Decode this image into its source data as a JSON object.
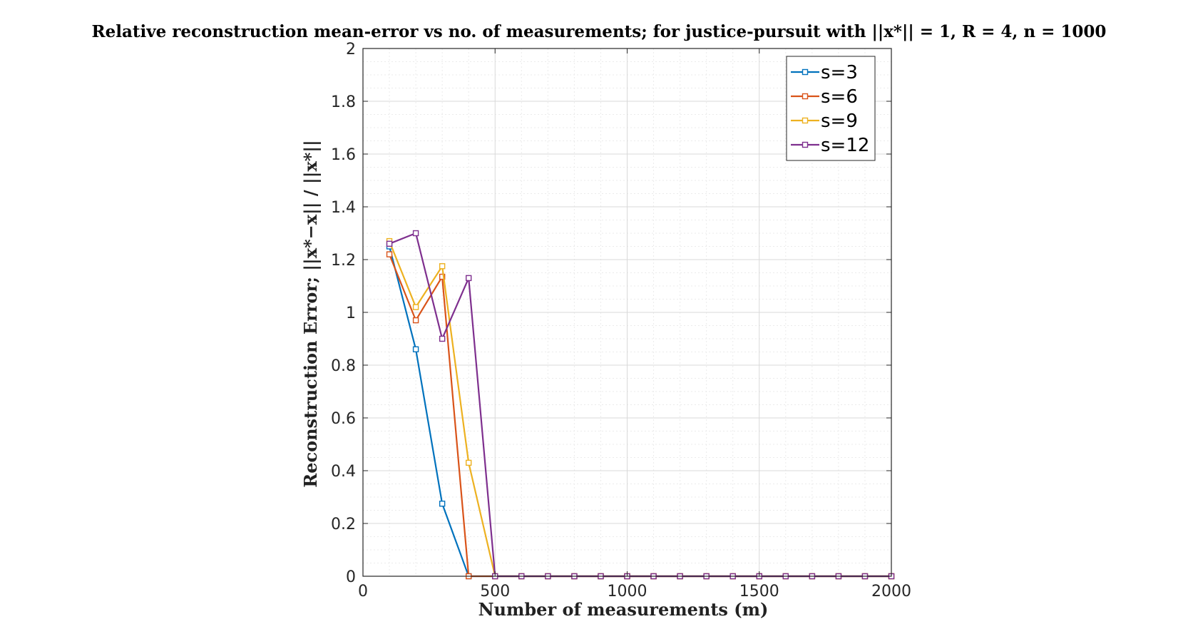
{
  "chart_data": {
    "type": "line",
    "title": "Relative reconstruction mean-error vs no. of measurements; for justice-pursuit with ||x*|| = 1, R = 4, n = 1000",
    "xlabel": "Number of measurements (m)",
    "ylabel": "Reconstruction Error; ||x*−x|| / ||x*||",
    "xlim": [
      0,
      2000
    ],
    "ylim": [
      0,
      2
    ],
    "xticks": [
      "0",
      "500",
      "1000",
      "1500",
      "2000"
    ],
    "yticks": [
      "0",
      "0.2",
      "0.4",
      "0.6",
      "0.8",
      "1",
      "1.2",
      "1.4",
      "1.6",
      "1.8",
      "2"
    ],
    "grid": true,
    "legend_position": "top-right",
    "x": [
      100,
      200,
      300,
      400,
      500,
      600,
      700,
      800,
      900,
      1000,
      1100,
      1200,
      1300,
      1400,
      1500,
      1600,
      1700,
      1800,
      1900,
      2000
    ],
    "series": [
      {
        "name": "s=3",
        "color": "#0072BD",
        "marker": "square",
        "values": [
          1.25,
          0.86,
          0.275,
          0,
          0,
          0,
          0,
          0,
          0,
          0,
          0,
          0,
          0,
          0,
          0,
          0,
          0,
          0,
          0,
          0
        ]
      },
      {
        "name": "s=6",
        "color": "#D95319",
        "marker": "square",
        "values": [
          1.22,
          0.97,
          1.135,
          0,
          0,
          0,
          0,
          0,
          0,
          0,
          0,
          0,
          0,
          0,
          0,
          0,
          0,
          0,
          0,
          0
        ]
      },
      {
        "name": "s=9",
        "color": "#EDB120",
        "marker": "square",
        "values": [
          1.27,
          1.02,
          1.175,
          0.43,
          0,
          0,
          0,
          0,
          0,
          0,
          0,
          0,
          0,
          0,
          0,
          0,
          0,
          0,
          0,
          0
        ]
      },
      {
        "name": "s=12",
        "color": "#7E2F8E",
        "marker": "square",
        "values": [
          1.26,
          1.3,
          0.9,
          1.13,
          0,
          0,
          0,
          0,
          0,
          0,
          0,
          0,
          0,
          0,
          0,
          0,
          0,
          0,
          0,
          0
        ]
      }
    ]
  }
}
